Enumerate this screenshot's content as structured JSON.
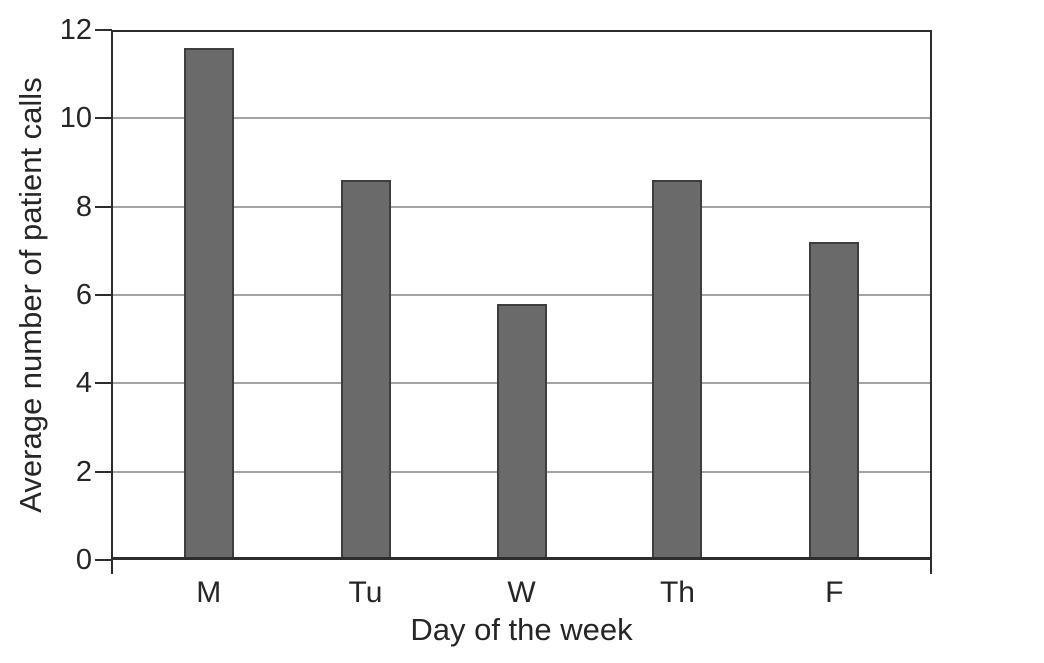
{
  "chart_data": {
    "type": "bar",
    "title": "",
    "categories": [
      "M",
      "Tu",
      "W",
      "Th",
      "F"
    ],
    "values": [
      11.6,
      8.6,
      5.8,
      8.6,
      7.2
    ],
    "xlabel": "Day of the week",
    "ylabel": "Average number of patient calls",
    "ylim": [
      0,
      12
    ],
    "yticks": [
      0,
      2,
      4,
      6,
      8,
      10,
      12
    ],
    "grid": "horizontal-only",
    "legend": "none",
    "colors": {
      "bar_fill": "#6a6a6a",
      "bar_border": "#3e3e3e",
      "axis_box": "#2d2d2d",
      "gridline": "#a3a3a3",
      "text": "#262626"
    }
  }
}
